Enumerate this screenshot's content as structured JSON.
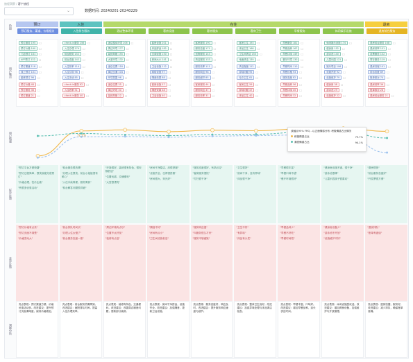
{
  "breadcrumb": {
    "parent": "旅程洞察",
    "sep": "/",
    "current": "客户旅程"
  },
  "toolbar": {
    "select_value": "",
    "date_label": "数据时间:",
    "date_value": "20240201-20240229"
  },
  "lanes": {
    "stage": "阶段",
    "touchpoint": "用户触点",
    "emotion": "用户情感",
    "positive": "好评反馈",
    "negative": "差评反馈",
    "insight": "洞察分析"
  },
  "stages": [
    {
      "label": "预订",
      "color": "#b6c7f0"
    },
    {
      "label": "入住",
      "color": "#5ec3c0"
    },
    {
      "label": "在住",
      "color": "#b5d96a"
    },
    {
      "label": "退房",
      "color": "#f6cf3f"
    }
  ],
  "steps": [
    {
      "label": "预订服务、渠道、价格相关",
      "color": "#6e8fe0"
    },
    {
      "label": "入住前台服务",
      "color": "#3fb3a9"
    },
    {
      "label": "酒店整体环境",
      "color": "#8cc44c"
    },
    {
      "label": "客房设施",
      "color": "#8cc44c"
    },
    {
      "label": "客房服务",
      "color": "#8cc44c"
    },
    {
      "label": "客房卫生",
      "color": "#8cc44c"
    },
    {
      "label": "早餐服务",
      "color": "#8cc44c"
    },
    {
      "label": "休闲娱乐设施",
      "color": "#8cc44c"
    },
    {
      "label": "退房前台服务",
      "color": "#e4b423"
    }
  ],
  "touchpoints": [
    {
      "green": [
        "预订服务 195",
        "预订价格 160",
        "门店预订 181",
        "APP预订 132"
      ],
      "blue": [
        "预订渠道 118",
        "线上预订 101",
        "团体预订 96"
      ],
      "red": [
        "预订价格 48",
        "预订服务 36",
        "预订渠道 21"
      ]
    },
    {
      "green": [
        "check-in服务 256",
        "入住办理 179",
        "前台服务 152",
        "前台态度 142"
      ],
      "blue": [
        "入住效率 114",
        "入住引导 98",
        "入住手续 85"
      ],
      "red": [
        "check-in服务 62",
        "入住效率 51",
        "check-in服务 40"
      ]
    },
    {
      "green": [
        "酒店整体环境 206",
        "周边环境 177",
        "装修风格 155",
        "大堂环境 132"
      ],
      "blue": [
        "酒店位置 118",
        "周边交通 104",
        "环境氛围 96"
      ],
      "red": [
        "酒店位置 35",
        "周边环境 30",
        "装修风格 22"
      ]
    },
    {
      "green": [
        "客房设施 201",
        "床品舒适 182",
        "空调设施 150",
        "房间大小 141"
      ],
      "blue": [
        "卫浴设施 112",
        "网络设施 97",
        "隔音效果 88"
      ],
      "red": [
        "客房设施 57",
        "隔音效果 48",
        "卫浴设施 40"
      ]
    },
    {
      "green": [
        "客房服务 190",
        "服务态度 171",
        "送物服务 143",
        "清洁服务 133"
      ],
      "blue": [
        "服务效率 111",
        "服务响应 98",
        "服务细节 85"
      ],
      "red": [
        "客房服务 44",
        "服务响应 37",
        "服务效率 31"
      ]
    },
    {
      "green": [
        "客房卫生 193",
        "床品卫生 168",
        "卫生间清洁 150",
        "地面清洁 139"
      ],
      "blue": [
        "清洁程度 112",
        "异味问题 95",
        "毛巾卫生 81"
      ],
      "red": [
        "客房卫生 59",
        "异味问题 47",
        "床品卫生 40"
      ]
    },
    {
      "green": [
        "早餐服务 181",
        "早餐品种 167",
        "早餐口味 149",
        "餐厅环境 130"
      ],
      "blue": [
        "早餐时间 110",
        "早餐价格 93",
        "服务态度 82"
      ],
      "red": [
        "早餐品种 56",
        "早餐口味 45",
        "早餐时间 32"
      ]
    },
    {
      "green": [
        "休闲娱乐设施 174",
        "健身房 152",
        "游泳池 140",
        "儿童乐园 121"
      ],
      "blue": [
        "娱乐项目 106",
        "设施开放 92",
        "设施维护 79"
      ],
      "red": [
        "健身房 38",
        "游泳池 29",
        "设施维护 22"
      ]
    },
    {
      "green": [
        "退房前台服务 168",
        "退房效率 151",
        "发票服务 132",
        "寄存服务 119"
      ],
      "blue": [
        "退房流程 101",
        "前台态度 89",
        "账单核对 74"
      ],
      "red": [
        "退房效率 36",
        "账单核对 28",
        "退房前台服务 21"
      ]
    }
  ],
  "emotion_chart": {
    "labels": [
      "",
      "72.1%",
      "",
      "",
      "",
      "",
      "",
      "",
      ""
    ],
    "series": [
      {
        "name": "带着积极情绪",
        "color": "#f0b84a",
        "values": [
          12,
          72.1,
          74.5,
          70.2,
          73.8,
          72.5,
          76.4,
          78.1,
          71.0
        ]
      },
      {
        "name": "带着满意情绪",
        "color": "#5dc0b2",
        "values": [
          60,
          66.0,
          62.5,
          60.8,
          63.2,
          64.0,
          68.5,
          70.4,
          55.0
        ]
      },
      {
        "name": "带着中性情绪",
        "color": "#9fc3ee",
        "values": [
          8,
          58.0,
          58.6,
          57.0,
          59.4,
          60.8,
          62.3,
          63.1,
          20.0
        ]
      }
    ],
    "tooltip": {
      "title": "该触点95% FRQ - 以正面情感分布: 积极情感占比情况",
      "rows": [
        {
          "name": "积极情感占比",
          "value": "79.7%",
          "color": "#f0b84a"
        },
        {
          "name": "满意情感占比",
          "value": "94.1%",
          "color": "#5dc0b2"
        }
      ]
    }
  },
  "positive_feedback": [
    [
      "\"预订平台方便快捷\"",
      "\"预订过程简单，很快就能完成预订\"",
      "\"价格合理，性价比高\"",
      "\"有很多优惠活动\""
    ],
    [
      "\"前台服务很热情\"",
      "\"办理入住很快，前台小姐姐很有耐心\"",
      "\"入住手续简便，服务周到\"",
      "\"前台解答问题很详细\""
    ],
    [
      "\"环境很好，装修很有特色，很安静舒适\"",
      "\"位置优越，交通便利\"",
      "\"大堂很漂亮\""
    ],
    [
      "\"房间干净整洁，床很舒服\"",
      "\"设施齐全，住得很舒服\"",
      "\"房间很大，采光好\""
    ],
    [
      "\"服务态度很好，有求必应\"",
      "\"客房服务很快\"",
      "\"打扫很干净\""
    ],
    [
      "\"卫生很好\"",
      "\"房间干净，没有异味\"",
      "\"床品很干净\""
    ],
    [
      "\"早餐很丰富\"",
      "\"早餐口味不错\"",
      "\"餐厅环境很好\""
    ],
    [
      "\"健身房设施不错，很干净\"",
      "\"游泳池很棒\"",
      "\"儿童乐园孩子很喜欢\""
    ],
    [
      "\"退房很快\"",
      "\"前台服务态度好\"",
      "\"开发票很方便\""
    ]
  ],
  "negative_feedback": [
    [
      "\"预订价格有点贵\"",
      "\"预订页面不清楚\"",
      "\"价格变动大\""
    ],
    [
      "\"前台排队时间长\"",
      "\"办理入住太慢了\"",
      "\"前台服务态度一般\""
    ],
    [
      "\"周边环境有点吵\"",
      "\"位置不太好找\"",
      "\"装修有点旧\""
    ],
    [
      "\"隔音不好\"",
      "\"房间有点小\"",
      "\"卫生间设施老旧\""
    ],
    [
      "\"服务响应慢\"",
      "\"叫服务很久才来\"",
      "\"服务不够细致\""
    ],
    [
      "\"卫生不好\"",
      "\"有异味\"",
      "\"床品有头发\""
    ],
    [
      "\"早餐品种少\"",
      "\"早餐不好吃\"",
      "\"早餐时间短\""
    ],
    [
      "\"健身房设备少\"",
      "\"游泳池不开放\"",
      "\"设施维护不好\""
    ],
    [
      "\"退房排队\"",
      "\"账单有错误\""
    ]
  ],
  "insights": [
    "亮点表现：预订渠道方便，价格优惠活动多。改进建议：提升预订页面清晰度，保持价格稳定。",
    "亮点表现：前台服务热情周到。改进建议：缩短排队时间，提高入住办理效率。",
    "亮点表现：装修有特色，交通便利。改进建议：改善周边噪音问题，更新部分装修。",
    "亮点表现：房间干净舒适，设施齐全。改进建议：加强隔音，更新卫浴设施。",
    "亮点表现：服务态度好，响应及时。改进建议：提升服务响应速度与细节。",
    "亮点表现：整体卫生良好。改进建议：加强异味处理与床品清洁检查。",
    "亮点表现：早餐丰富，口味好。改进建议：增加早餐品种，延长供应时间。",
    "亮点表现：休闲设施受欢迎。改进建议：增加健身设备，加强维护与开放管理。",
    "亮点表现：退房快捷，服务好。改进建议：减少排队，确保账单准确。"
  ]
}
